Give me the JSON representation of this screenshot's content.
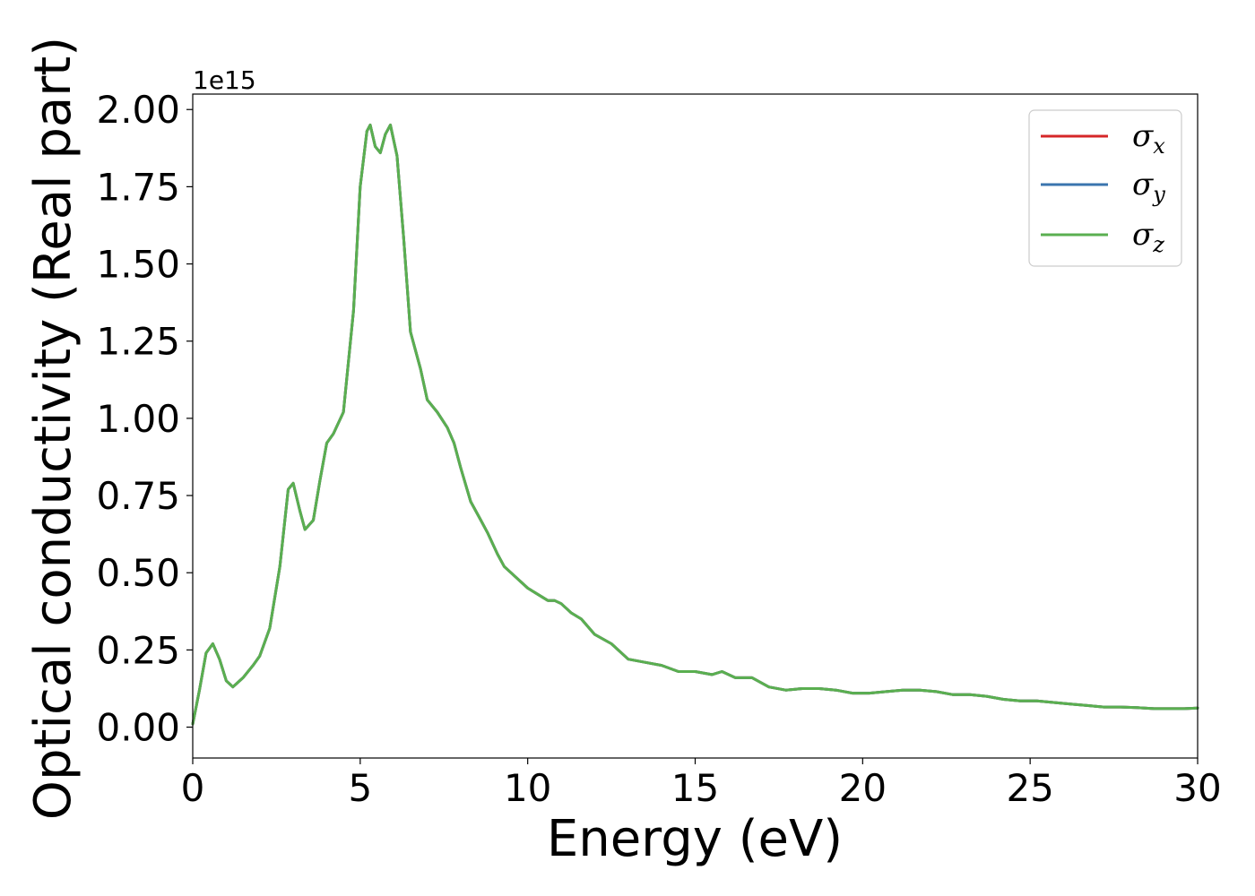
{
  "chart_data": {
    "type": "line",
    "xlabel": "Energy (eV)",
    "ylabel": "Optical conductivity (Real part)",
    "y_offset_text": "1e15",
    "xlim": [
      0,
      30
    ],
    "ylim": [
      -0.1,
      2.05
    ],
    "y_scale_factor": 1000000000000000.0,
    "x_ticks": [
      0,
      5,
      10,
      15,
      20,
      25,
      30
    ],
    "x_tick_labels": [
      "0",
      "5",
      "10",
      "15",
      "20",
      "25",
      "30"
    ],
    "y_ticks": [
      0.0,
      0.25,
      0.5,
      0.75,
      1.0,
      1.25,
      1.5,
      1.75,
      2.0
    ],
    "y_tick_labels": [
      "0.00",
      "0.25",
      "0.50",
      "0.75",
      "1.00",
      "1.25",
      "1.50",
      "1.75",
      "2.00"
    ],
    "grid": false,
    "legend_position": "top-right",
    "x": [
      0,
      0.2,
      0.4,
      0.6,
      0.8,
      1.0,
      1.2,
      1.5,
      1.8,
      2.0,
      2.3,
      2.6,
      2.85,
      3.0,
      3.2,
      3.35,
      3.6,
      3.8,
      4.0,
      4.2,
      4.5,
      4.8,
      5.0,
      5.2,
      5.3,
      5.45,
      5.6,
      5.75,
      5.9,
      6.1,
      6.3,
      6.5,
      6.8,
      7.0,
      7.3,
      7.6,
      7.8,
      8.0,
      8.3,
      8.6,
      8.8,
      9.1,
      9.3,
      9.5,
      9.8,
      10.0,
      10.3,
      10.6,
      10.8,
      11.0,
      11.3,
      11.6,
      12.0,
      12.5,
      13.0,
      13.5,
      14.0,
      14.5,
      15.0,
      15.5,
      15.8,
      16.2,
      16.7,
      17.2,
      17.7,
      18.2,
      18.7,
      19.2,
      19.7,
      20.2,
      20.7,
      21.2,
      21.7,
      22.2,
      22.7,
      23.2,
      23.7,
      24.2,
      24.7,
      25.2,
      25.7,
      26.2,
      26.7,
      27.2,
      27.7,
      28.2,
      28.7,
      29.2,
      29.6,
      30.0
    ],
    "series": [
      {
        "name": "σx",
        "color": "#d62728",
        "values": [
          0.01,
          0.12,
          0.24,
          0.27,
          0.22,
          0.15,
          0.13,
          0.16,
          0.2,
          0.23,
          0.32,
          0.52,
          0.77,
          0.79,
          0.7,
          0.64,
          0.67,
          0.8,
          0.92,
          0.95,
          1.02,
          1.35,
          1.75,
          1.93,
          1.95,
          1.88,
          1.86,
          1.92,
          1.95,
          1.85,
          1.58,
          1.28,
          1.16,
          1.06,
          1.02,
          0.97,
          0.92,
          0.84,
          0.73,
          0.67,
          0.63,
          0.56,
          0.52,
          0.5,
          0.47,
          0.45,
          0.43,
          0.41,
          0.41,
          0.4,
          0.37,
          0.35,
          0.3,
          0.27,
          0.22,
          0.21,
          0.2,
          0.18,
          0.18,
          0.17,
          0.18,
          0.16,
          0.16,
          0.13,
          0.12,
          0.125,
          0.125,
          0.12,
          0.11,
          0.11,
          0.115,
          0.12,
          0.12,
          0.115,
          0.105,
          0.105,
          0.1,
          0.09,
          0.085,
          0.085,
          0.08,
          0.075,
          0.07,
          0.065,
          0.065,
          0.063,
          0.06,
          0.06,
          0.06,
          0.062
        ]
      },
      {
        "name": "σy",
        "color": "#3a75ae",
        "values": [
          0.01,
          0.12,
          0.24,
          0.27,
          0.22,
          0.15,
          0.13,
          0.16,
          0.2,
          0.23,
          0.32,
          0.52,
          0.77,
          0.79,
          0.7,
          0.64,
          0.67,
          0.8,
          0.92,
          0.95,
          1.02,
          1.35,
          1.75,
          1.93,
          1.95,
          1.88,
          1.86,
          1.92,
          1.95,
          1.85,
          1.58,
          1.28,
          1.16,
          1.06,
          1.02,
          0.97,
          0.92,
          0.84,
          0.73,
          0.67,
          0.63,
          0.56,
          0.52,
          0.5,
          0.47,
          0.45,
          0.43,
          0.41,
          0.41,
          0.4,
          0.37,
          0.35,
          0.3,
          0.27,
          0.22,
          0.21,
          0.2,
          0.18,
          0.18,
          0.17,
          0.18,
          0.16,
          0.16,
          0.13,
          0.12,
          0.125,
          0.125,
          0.12,
          0.11,
          0.11,
          0.115,
          0.12,
          0.12,
          0.115,
          0.105,
          0.105,
          0.1,
          0.09,
          0.085,
          0.085,
          0.08,
          0.075,
          0.07,
          0.065,
          0.065,
          0.063,
          0.06,
          0.06,
          0.06,
          0.062
        ]
      },
      {
        "name": "σz",
        "color": "#5aaf50",
        "values": [
          0.01,
          0.12,
          0.24,
          0.27,
          0.22,
          0.15,
          0.13,
          0.16,
          0.2,
          0.23,
          0.32,
          0.52,
          0.77,
          0.79,
          0.7,
          0.64,
          0.67,
          0.8,
          0.92,
          0.95,
          1.02,
          1.35,
          1.75,
          1.93,
          1.95,
          1.88,
          1.86,
          1.92,
          1.95,
          1.85,
          1.58,
          1.28,
          1.16,
          1.06,
          1.02,
          0.97,
          0.92,
          0.84,
          0.73,
          0.67,
          0.63,
          0.56,
          0.52,
          0.5,
          0.47,
          0.45,
          0.43,
          0.41,
          0.41,
          0.4,
          0.37,
          0.35,
          0.3,
          0.27,
          0.22,
          0.21,
          0.2,
          0.18,
          0.18,
          0.17,
          0.18,
          0.16,
          0.16,
          0.13,
          0.12,
          0.125,
          0.125,
          0.12,
          0.11,
          0.11,
          0.115,
          0.12,
          0.12,
          0.115,
          0.105,
          0.105,
          0.1,
          0.09,
          0.085,
          0.085,
          0.08,
          0.075,
          0.07,
          0.065,
          0.065,
          0.063,
          0.06,
          0.06,
          0.06,
          0.062
        ]
      }
    ],
    "legend": [
      {
        "symbol": "σ",
        "subscript": "x"
      },
      {
        "symbol": "σ",
        "subscript": "y"
      },
      {
        "symbol": "σ",
        "subscript": "z"
      }
    ]
  }
}
